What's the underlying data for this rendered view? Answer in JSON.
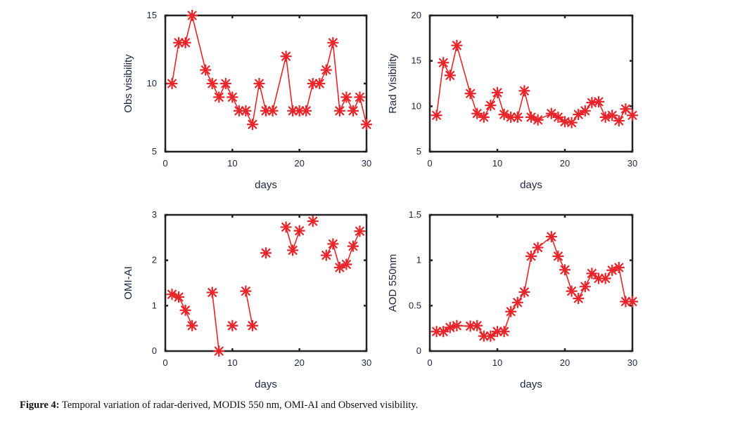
{
  "caption": {
    "label": "Figure 4:",
    "text": " Temporal variation of radar-derived, MODIS 550 nm, OMI-AI and Observed visibility."
  },
  "colors": {
    "series": "#e8252a",
    "axis": "#222222",
    "text": "#1e2741"
  },
  "chart_data": [
    {
      "id": "obs",
      "type": "line",
      "marker": "asterisk",
      "title": "",
      "xlabel": "days",
      "ylabel": "Obs visibility",
      "xlim": [
        0,
        30
      ],
      "ylim": [
        5,
        15
      ],
      "xticks": [
        0,
        10,
        20,
        30
      ],
      "yticks": [
        5,
        10,
        15
      ],
      "grid": false,
      "series": [
        {
          "name": "Observed visibility",
          "segments": [
            {
              "x": [
                1,
                2,
                3,
                4,
                6,
                7,
                8,
                9,
                10,
                11,
                12,
                13,
                14,
                15,
                16,
                18,
                19,
                20,
                21,
                22,
                23,
                24,
                25,
                26,
                27,
                28,
                29,
                30
              ],
              "y": [
                10,
                13,
                13,
                15,
                11,
                10,
                9,
                10,
                9,
                8,
                8,
                7,
                10,
                8,
                8,
                12,
                8,
                8,
                8,
                10,
                10,
                11,
                13,
                8,
                9,
                8,
                9,
                7
              ]
            }
          ]
        }
      ]
    },
    {
      "id": "rad",
      "type": "line",
      "marker": "asterisk",
      "title": "",
      "xlabel": "days",
      "ylabel": "Rad Visibility",
      "xlim": [
        0,
        30
      ],
      "ylim": [
        5,
        20
      ],
      "xticks": [
        0,
        10,
        20,
        30
      ],
      "yticks": [
        5,
        10,
        15,
        20
      ],
      "grid": false,
      "series": [
        {
          "name": "Radar-derived visibility",
          "segments": [
            {
              "x": [
                1,
                2,
                3,
                4,
                6,
                7,
                8,
                9,
                10,
                11,
                12,
                13,
                14,
                15,
                16,
                18,
                19,
                20,
                21,
                22,
                23,
                24,
                25,
                26,
                27,
                28,
                29,
                30
              ],
              "y": [
                9.0,
                14.8,
                13.4,
                16.7,
                11.4,
                9.2,
                8.8,
                10.1,
                11.5,
                9.1,
                8.8,
                8.8,
                11.7,
                8.8,
                8.5,
                9.2,
                8.8,
                8.3,
                8.2,
                9.1,
                9.5,
                10.4,
                10.5,
                8.8,
                9.0,
                8.4,
                9.7,
                9.0
              ]
            }
          ]
        }
      ]
    },
    {
      "id": "omi",
      "type": "line",
      "marker": "asterisk",
      "title": "",
      "xlabel": "days",
      "ylabel": "OMI-AI",
      "xlim": [
        0,
        30
      ],
      "ylim": [
        0,
        3
      ],
      "xticks": [
        0,
        10,
        20,
        30
      ],
      "yticks": [
        0,
        1,
        2,
        3
      ],
      "grid": false,
      "series": [
        {
          "name": "OMI-AI",
          "segments": [
            {
              "x": [
                1,
                2,
                3,
                4
              ],
              "y": [
                1.25,
                1.19,
                0.9,
                0.56
              ]
            },
            {
              "x": [
                7,
                8
              ],
              "y": [
                1.29,
                0.0
              ]
            },
            {
              "x": [
                10
              ],
              "y": [
                0.56
              ]
            },
            {
              "x": [
                12,
                13
              ],
              "y": [
                1.32,
                0.56
              ]
            },
            {
              "x": [
                15
              ],
              "y": [
                2.16
              ]
            },
            {
              "x": [
                18,
                19,
                20
              ],
              "y": [
                2.73,
                2.22,
                2.65
              ]
            },
            {
              "x": [
                22
              ],
              "y": [
                2.86
              ]
            },
            {
              "x": [
                24,
                25,
                26,
                27,
                28,
                29
              ],
              "y": [
                2.11,
                2.36,
                1.84,
                1.91,
                2.31,
                2.64
              ]
            }
          ]
        }
      ]
    },
    {
      "id": "aod",
      "type": "line",
      "marker": "asterisk",
      "title": "",
      "xlabel": "days",
      "ylabel": "AOD 550nm",
      "xlim": [
        0,
        30
      ],
      "ylim": [
        0,
        1.5
      ],
      "xticks": [
        0,
        10,
        20,
        30
      ],
      "yticks": [
        0,
        0.5,
        1,
        1.5
      ],
      "grid": false,
      "series": [
        {
          "name": "MODIS AOD 550 nm",
          "segments": [
            {
              "x": [
                1,
                2,
                3,
                4,
                6,
                7,
                8,
                9,
                10,
                11,
                12,
                13,
                14,
                15,
                16,
                18,
                19,
                20,
                21,
                22,
                23,
                24,
                25,
                26,
                27,
                28,
                29,
                30
              ],
              "y": [
                0.215,
                0.215,
                0.26,
                0.28,
                0.275,
                0.28,
                0.165,
                0.165,
                0.215,
                0.215,
                0.435,
                0.535,
                0.65,
                1.045,
                1.14,
                1.26,
                1.045,
                0.895,
                0.66,
                0.58,
                0.71,
                0.855,
                0.8,
                0.8,
                0.89,
                0.92,
                0.545,
                0.545
              ]
            }
          ]
        }
      ]
    }
  ]
}
